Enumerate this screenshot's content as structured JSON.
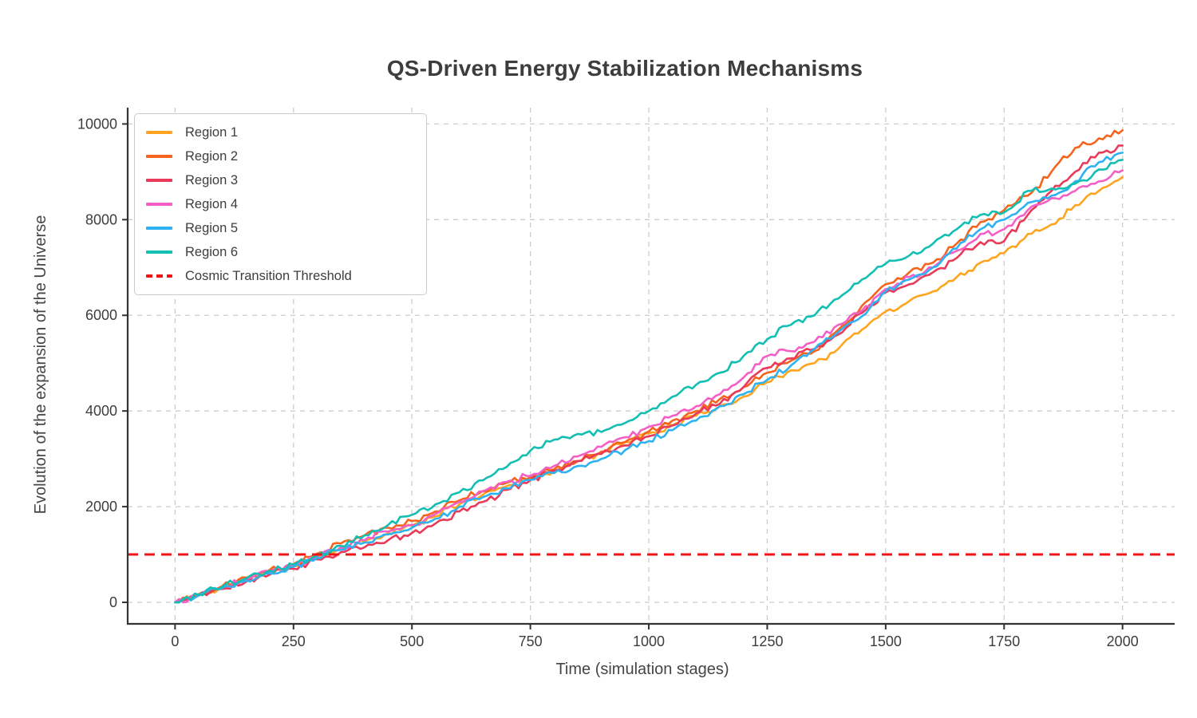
{
  "chart_data": {
    "type": "line",
    "title": "QS-Driven Energy Stabilization Mechanisms",
    "xlabel": "Time (simulation stages)",
    "ylabel": "Evolution of the expansion of the Universe",
    "xlim": [
      -100,
      2110
    ],
    "ylim": [
      -450,
      10340
    ],
    "xticks": [
      0,
      250,
      500,
      750,
      1000,
      1250,
      1500,
      1750,
      2000
    ],
    "yticks": [
      0,
      2000,
      4000,
      6000,
      8000,
      10000
    ],
    "grid": true,
    "grid_style": "dashed",
    "legend_position": "upper left",
    "x_samples": [
      0,
      50,
      100,
      150,
      200,
      250,
      300,
      350,
      400,
      450,
      500,
      550,
      600,
      650,
      700,
      750,
      800,
      850,
      900,
      950,
      1000,
      1050,
      1100,
      1150,
      1200,
      1250,
      1300,
      1350,
      1400,
      1450,
      1500,
      1550,
      1600,
      1650,
      1700,
      1750,
      1800,
      1850,
      1900,
      1950,
      2000
    ],
    "series": [
      {
        "name": "Region 1",
        "color": "#FFA41E",
        "values": [
          0,
          150,
          310,
          470,
          620,
          750,
          940,
          1120,
          1280,
          1450,
          1600,
          1800,
          2050,
          2250,
          2430,
          2580,
          2750,
          2950,
          3150,
          3350,
          3530,
          3700,
          3900,
          4100,
          4300,
          4600,
          4850,
          5000,
          5300,
          5700,
          6080,
          6300,
          6500,
          6800,
          7100,
          7300,
          7700,
          7900,
          8300,
          8600,
          8890
        ]
      },
      {
        "name": "Region 2",
        "color": "#F5641D",
        "values": [
          0,
          170,
          340,
          520,
          680,
          800,
          1020,
          1230,
          1400,
          1560,
          1700,
          1900,
          2130,
          2330,
          2500,
          2620,
          2780,
          2950,
          3150,
          3350,
          3570,
          3800,
          4000,
          4250,
          4500,
          4800,
          5050,
          5250,
          5700,
          6200,
          6650,
          6900,
          7100,
          7500,
          7950,
          8200,
          8500,
          9000,
          9500,
          9700,
          9870
        ]
      },
      {
        "name": "Region 3",
        "color": "#E93A5A",
        "values": [
          0,
          140,
          280,
          430,
          580,
          700,
          900,
          1050,
          1150,
          1300,
          1450,
          1650,
          1900,
          2100,
          2350,
          2550,
          2750,
          2950,
          3100,
          3280,
          3470,
          3700,
          3950,
          4150,
          4500,
          4900,
          5100,
          5300,
          5600,
          6050,
          6480,
          6650,
          6900,
          7200,
          7530,
          7550,
          8100,
          8600,
          9000,
          9400,
          9550
        ]
      },
      {
        "name": "Region 4",
        "color": "#F45FC6",
        "values": [
          0,
          160,
          320,
          490,
          640,
          770,
          960,
          1150,
          1300,
          1480,
          1620,
          1850,
          2100,
          2320,
          2520,
          2640,
          2850,
          3050,
          3250,
          3450,
          3670,
          3900,
          4100,
          4350,
          4700,
          5150,
          5250,
          5450,
          5800,
          6100,
          6550,
          6800,
          7000,
          7350,
          7700,
          7800,
          8200,
          8450,
          8600,
          8800,
          9030
        ]
      },
      {
        "name": "Region 5",
        "color": "#2EB2F2",
        "values": [
          0,
          150,
          300,
          450,
          610,
          740,
          930,
          1100,
          1250,
          1420,
          1560,
          1750,
          2000,
          2200,
          2380,
          2560,
          2700,
          2850,
          3000,
          3180,
          3370,
          3600,
          3800,
          4100,
          4350,
          4650,
          4950,
          5300,
          5650,
          5980,
          6500,
          6750,
          7000,
          7400,
          7800,
          8000,
          8350,
          8500,
          8800,
          9200,
          9400
        ]
      },
      {
        "name": "Region 6",
        "color": "#12BFB2",
        "values": [
          0,
          160,
          330,
          500,
          660,
          790,
          980,
          1180,
          1400,
          1620,
          1830,
          2050,
          2300,
          2550,
          2830,
          3170,
          3400,
          3520,
          3560,
          3750,
          4000,
          4300,
          4550,
          4800,
          5150,
          5500,
          5800,
          6000,
          6350,
          6750,
          7080,
          7250,
          7500,
          7800,
          8100,
          8150,
          8600,
          8650,
          8750,
          9050,
          9250
        ]
      }
    ],
    "threshold": {
      "label": "Cosmic Transition Threshold",
      "value": 1000,
      "color": "#F01414",
      "style": "dashed"
    }
  },
  "style_colors": {
    "text": "#3d3d3d",
    "spine": "#333333",
    "grid": "#cccccc"
  },
  "render": {
    "noise_amplitude": 85,
    "noise_seed": 11,
    "line_width": 2.6
  }
}
